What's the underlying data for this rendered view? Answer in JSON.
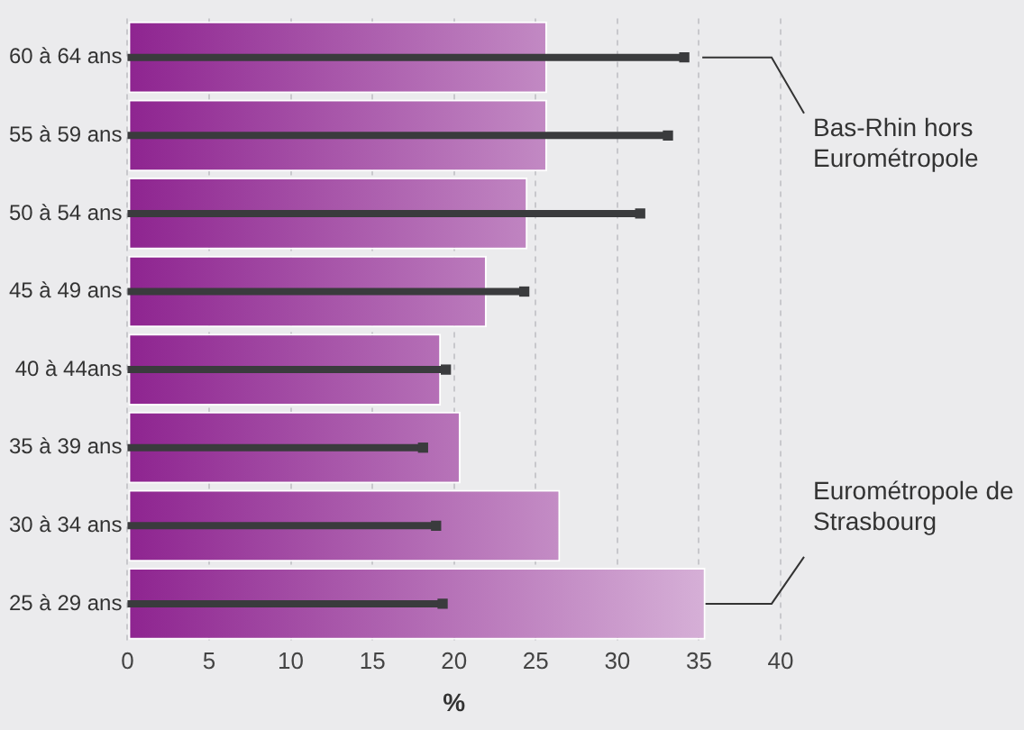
{
  "chart_data": {
    "type": "bar",
    "orientation": "horizontal",
    "xlabel": "%",
    "categories": [
      "60 à 64 ans",
      "55 à 59 ans",
      "50 à 54 ans",
      "45 à 49 ans",
      "40 à 44ans",
      "35 à 39 ans",
      "30 à 34 ans",
      "25 à 29 ans"
    ],
    "series": [
      {
        "name": "Eurométropole de Strasbourg",
        "type": "bar",
        "color": "#8e2490",
        "values": [
          25.7,
          25.7,
          24.5,
          22.0,
          19.2,
          20.4,
          26.5,
          35.4
        ]
      },
      {
        "name": "Bas-Rhin hors Eurométropole",
        "type": "lollipop",
        "color": "#3a3b3d",
        "values": [
          34.1,
          33.1,
          31.4,
          24.3,
          19.5,
          18.1,
          18.9,
          19.3
        ]
      }
    ],
    "xlim": [
      0,
      40
    ],
    "xticks": [
      0,
      5,
      10,
      15,
      20,
      25,
      30,
      35,
      40
    ],
    "grid": "x",
    "legend": false
  }
}
